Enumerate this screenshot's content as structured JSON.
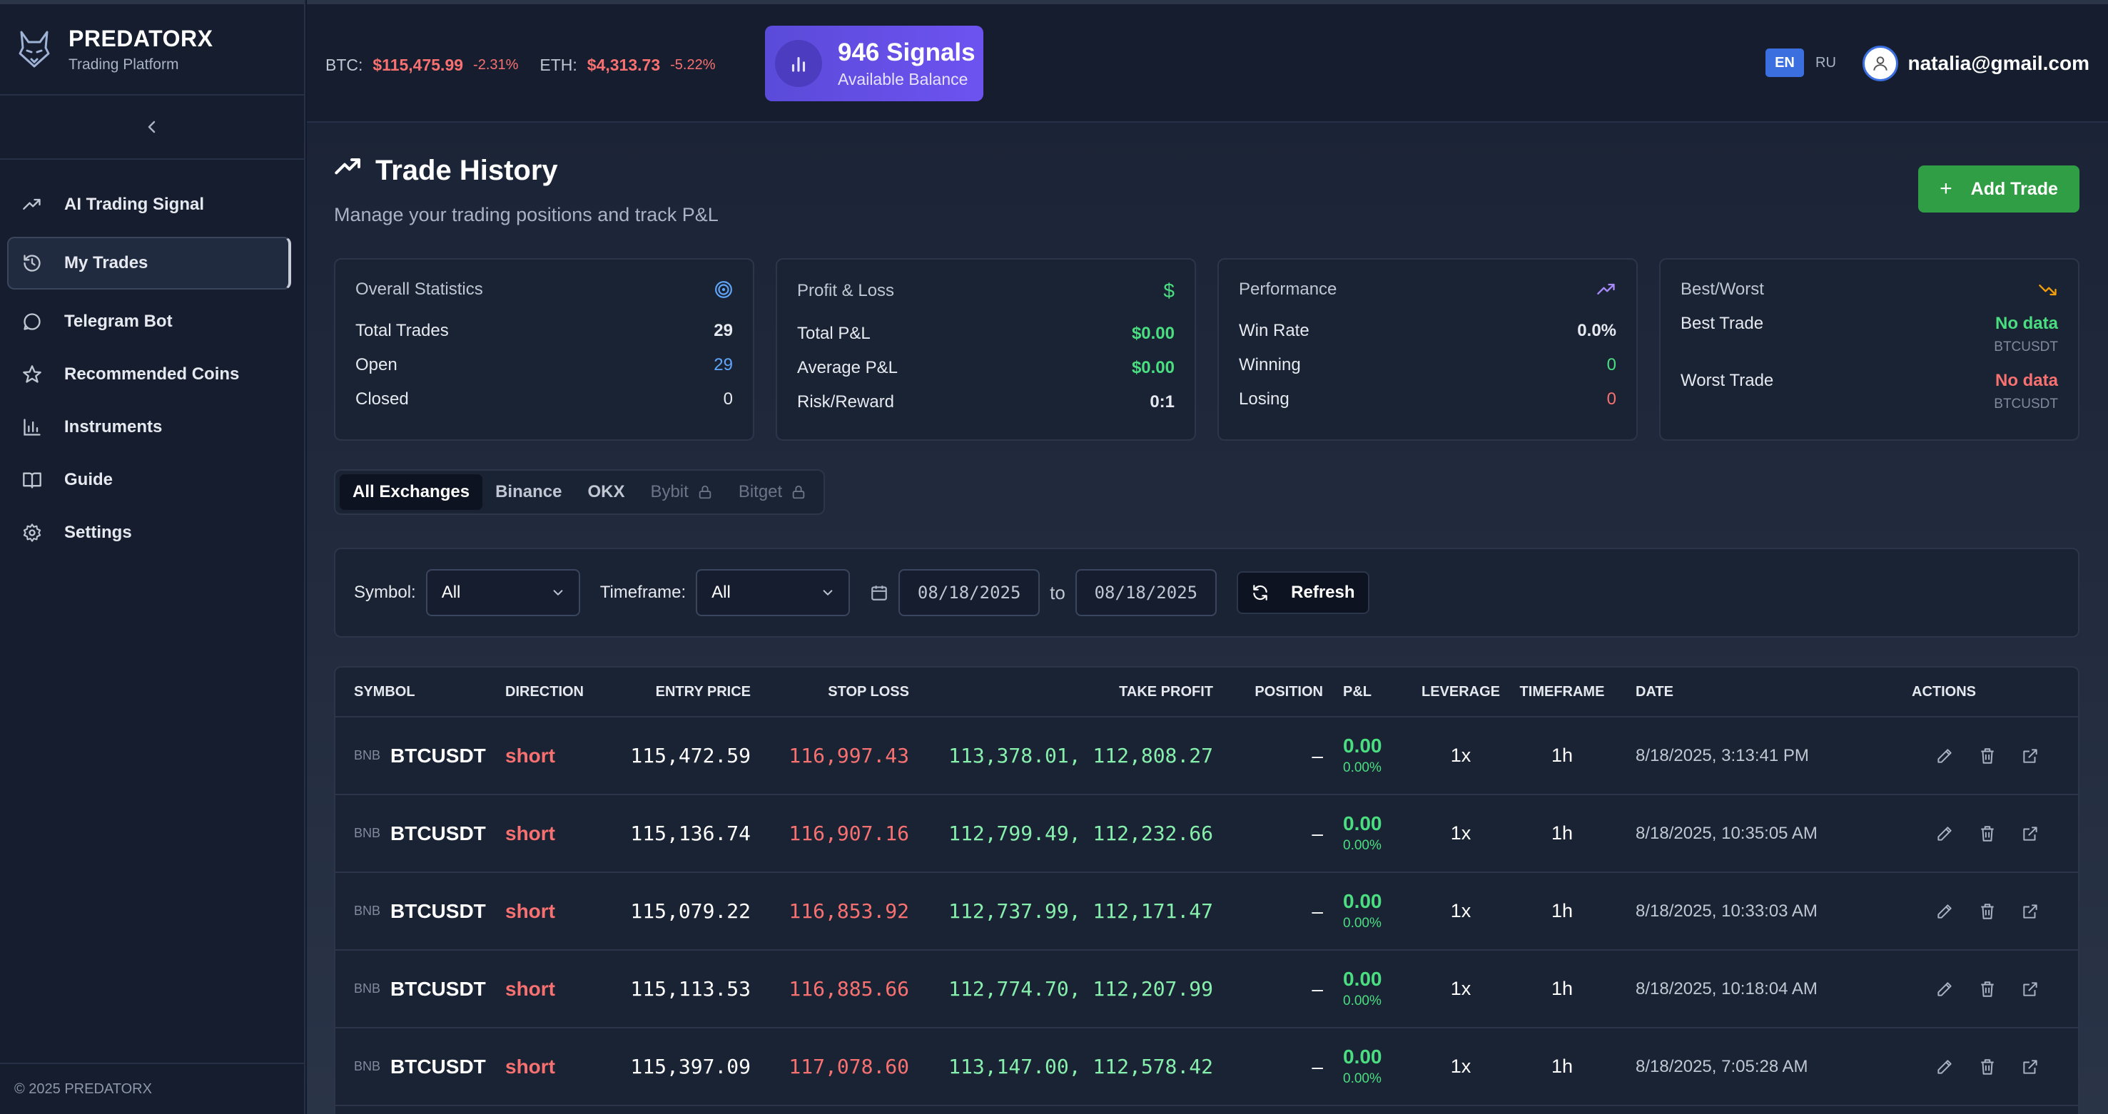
{
  "brand": {
    "name": "PREDATORX",
    "subtitle": "Trading Platform"
  },
  "sidebar": {
    "items": [
      {
        "label": "AI Trading Signal",
        "icon": "trending-up-icon",
        "active": false
      },
      {
        "label": "My Trades",
        "icon": "history-icon",
        "active": true
      },
      {
        "label": "Telegram Bot",
        "icon": "chat-bubble-icon",
        "active": false
      },
      {
        "label": "Recommended Coins",
        "icon": "star-icon",
        "active": false
      },
      {
        "label": "Instruments",
        "icon": "bar-chart-icon",
        "active": false
      },
      {
        "label": "Guide",
        "icon": "book-icon",
        "active": false
      },
      {
        "label": "Settings",
        "icon": "gear-icon",
        "active": false
      }
    ],
    "footer": "© 2025 PREDATORX"
  },
  "topbar": {
    "tickers": [
      {
        "label": "BTC:",
        "price": "$115,475.99",
        "change": "-2.31%"
      },
      {
        "label": "ETH:",
        "price": "$4,313.73",
        "change": "-5.22%"
      }
    ],
    "signals": {
      "count": "946 Signals",
      "label": "Available Balance"
    },
    "lang": {
      "active": "EN",
      "other": "RU"
    },
    "user_email": "natalia@gmail.com"
  },
  "page": {
    "title": "Trade History",
    "subtitle": "Manage your trading positions and track P&L",
    "add_button": "Add Trade"
  },
  "cards": {
    "overall": {
      "title": "Overall Statistics",
      "rows": [
        {
          "label": "Total Trades",
          "value": "29"
        },
        {
          "label": "Open",
          "value": "29"
        },
        {
          "label": "Closed",
          "value": "0"
        }
      ]
    },
    "pnl": {
      "title": "Profit & Loss",
      "rows": [
        {
          "label": "Total P&L",
          "value": "$0.00"
        },
        {
          "label": "Average P&L",
          "value": "$0.00"
        },
        {
          "label": "Risk/Reward",
          "value": "0:1"
        }
      ]
    },
    "performance": {
      "title": "Performance",
      "rows": [
        {
          "label": "Win Rate",
          "value": "0.0%"
        },
        {
          "label": "Winning",
          "value": "0"
        },
        {
          "label": "Losing",
          "value": "0"
        }
      ]
    },
    "bestworst": {
      "title": "Best/Worst",
      "best": {
        "label": "Best Trade",
        "value": "No data",
        "symbol": "BTCUSDT"
      },
      "worst": {
        "label": "Worst Trade",
        "value": "No data",
        "symbol": "BTCUSDT"
      }
    }
  },
  "exchanges": {
    "tabs": [
      {
        "label": "All Exchanges",
        "active": true,
        "locked": false
      },
      {
        "label": "Binance",
        "active": false,
        "locked": false
      },
      {
        "label": "OKX",
        "active": false,
        "locked": false
      },
      {
        "label": "Bybit",
        "active": false,
        "locked": true
      },
      {
        "label": "Bitget",
        "active": false,
        "locked": true
      }
    ]
  },
  "filters": {
    "symbol_label": "Symbol:",
    "symbol_value": "All",
    "timeframe_label": "Timeframe:",
    "timeframe_value": "All",
    "date_from": "08/18/2025",
    "to_label": "to",
    "date_to": "08/18/2025",
    "refresh_label": "Refresh"
  },
  "table": {
    "headers": [
      "SYMBOL",
      "DIRECTION",
      "ENTRY PRICE",
      "STOP LOSS",
      "TAKE PROFIT",
      "POSITION",
      "P&L",
      "LEVERAGE",
      "TIMEFRAME",
      "DATE",
      "ACTIONS"
    ],
    "rows": [
      {
        "exchange": "BNB",
        "symbol": "BTCUSDT",
        "direction": "short",
        "entry": "115,472.59",
        "stop_loss": "116,997.43",
        "take_profit": "113,378.01, 112,808.27",
        "position": "–",
        "pnl": "0.00",
        "pnl_pct": "0.00%",
        "leverage": "1x",
        "timeframe": "1h",
        "date": "8/18/2025, 3:13:41 PM"
      },
      {
        "exchange": "BNB",
        "symbol": "BTCUSDT",
        "direction": "short",
        "entry": "115,136.74",
        "stop_loss": "116,907.16",
        "take_profit": "112,799.49, 112,232.66",
        "position": "–",
        "pnl": "0.00",
        "pnl_pct": "0.00%",
        "leverage": "1x",
        "timeframe": "1h",
        "date": "8/18/2025, 10:35:05 AM"
      },
      {
        "exchange": "BNB",
        "symbol": "BTCUSDT",
        "direction": "short",
        "entry": "115,079.22",
        "stop_loss": "116,853.92",
        "take_profit": "112,737.99, 112,171.47",
        "position": "–",
        "pnl": "0.00",
        "pnl_pct": "0.00%",
        "leverage": "1x",
        "timeframe": "1h",
        "date": "8/18/2025, 10:33:03 AM"
      },
      {
        "exchange": "BNB",
        "symbol": "BTCUSDT",
        "direction": "short",
        "entry": "115,113.53",
        "stop_loss": "116,885.66",
        "take_profit": "112,774.70, 112,207.99",
        "position": "–",
        "pnl": "0.00",
        "pnl_pct": "0.00%",
        "leverage": "1x",
        "timeframe": "1h",
        "date": "8/18/2025, 10:18:04 AM"
      },
      {
        "exchange": "BNB",
        "symbol": "BTCUSDT",
        "direction": "short",
        "entry": "115,397.09",
        "stop_loss": "117,078.60",
        "take_profit": "113,147.00, 112,578.42",
        "position": "–",
        "pnl": "0.00",
        "pnl_pct": "0.00%",
        "leverage": "1x",
        "timeframe": "1h",
        "date": "8/18/2025, 7:05:28 AM"
      }
    ]
  },
  "colors": {
    "positive": "#4ade80",
    "negative": "#f87171",
    "accent": "#6d52f0",
    "add_button": "#2f9e44",
    "lang_active": "#3b6fe0"
  }
}
